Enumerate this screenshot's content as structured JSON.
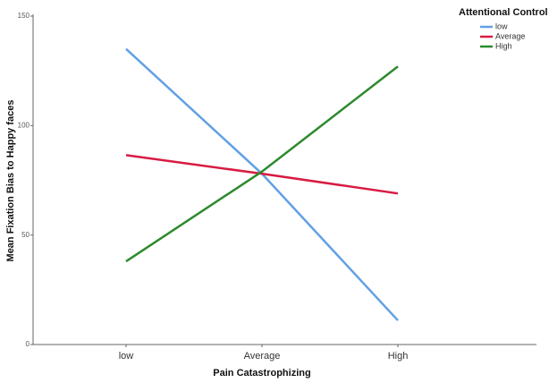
{
  "chart_data": {
    "type": "line",
    "x_label": "Pain Catastrophizing",
    "y_label": "Mean Fixation Bias to Happy faces",
    "categories": [
      "low",
      "Average",
      "High"
    ],
    "series": [
      {
        "name": "low",
        "color": "#62a0e4",
        "values": [
          135,
          78,
          11
        ]
      },
      {
        "name": "Average",
        "color": "#d81b42",
        "values": [
          86.5,
          78,
          69
        ]
      },
      {
        "name": "High",
        "color": "#2d8a2d",
        "values": [
          38,
          79,
          127
        ]
      }
    ],
    "ylim": [
      0,
      150
    ],
    "yticks": [
      0,
      50,
      100,
      150
    ],
    "legend_title": "Attentional Control",
    "legend": "top-right"
  }
}
